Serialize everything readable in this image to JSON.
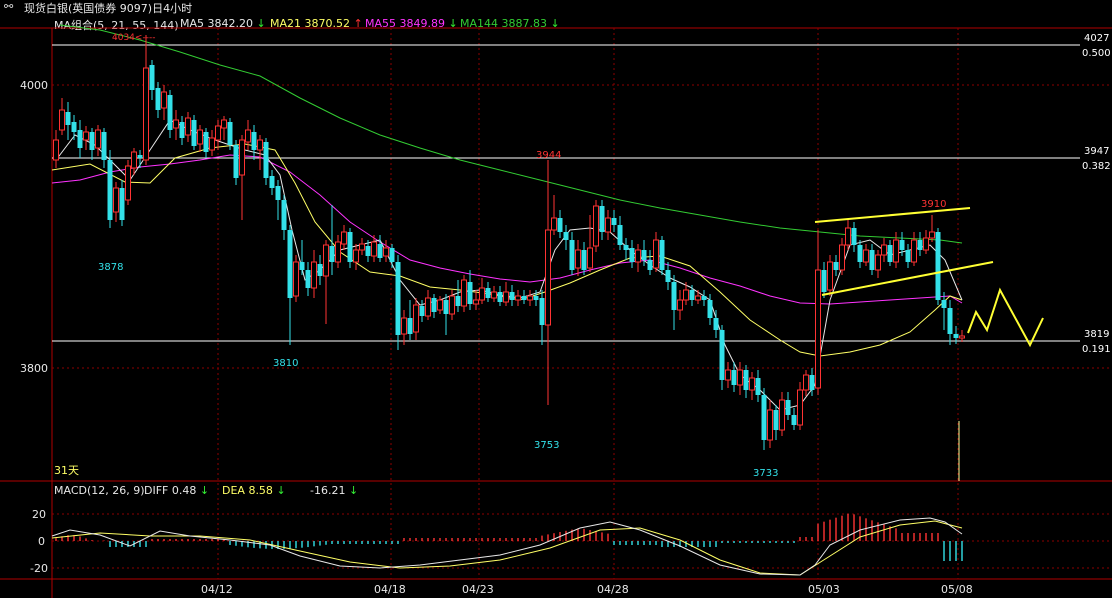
{
  "window": {
    "title_icon": "link-icon",
    "title": "现货白银(英国债券 9097)日4小时"
  },
  "ma_legend": {
    "group": "MA组合(5, 21, 55, 144)",
    "items": [
      {
        "label": "MA5 3842.20",
        "arrow": "↓",
        "color": "#e8e8e8"
      },
      {
        "label": "MA21 3870.52",
        "arrow": "↑",
        "color": "#ffff66"
      },
      {
        "label": "MA55 3849.89",
        "arrow": "↓",
        "color": "#ff33ff"
      },
      {
        "label": "MA144 3887.83",
        "arrow": "↓",
        "color": "#33cc33"
      }
    ]
  },
  "price_axis": {
    "ticks": [
      "4000",
      "3800"
    ]
  },
  "fib_levels": [
    {
      "price": "4027",
      "ratio": "0.500"
    },
    {
      "price": "3947",
      "ratio": "0.382"
    },
    {
      "price": "3819",
      "ratio": "0.191"
    }
  ],
  "annotations": {
    "high_4034": "4034<----",
    "p3878": "3878",
    "p3810": "3810",
    "p3944": "3944",
    "p3753": "3753",
    "p3733": "3733",
    "p3910": "3910",
    "period_label": "31天"
  },
  "macd_legend": {
    "title": "MACD(12, 26, 9)",
    "diff": "DIFF  0.48",
    "diff_arrow": "↓",
    "dea": "DEA  8.58",
    "dea_arrow": "↓",
    "macd": "-16.21",
    "macd_arrow": "↓"
  },
  "macd_axis": {
    "ticks": [
      "20",
      "0",
      "-20"
    ]
  },
  "date_axis": {
    "ticks": [
      "04/12",
      "04/18",
      "04/23",
      "04/28",
      "05/03",
      "05/08"
    ]
  },
  "colors": {
    "up": "#ff3333",
    "down": "#33e0e8",
    "grid": "#8b0000",
    "fib": "#ffffff",
    "trendline": "#ffff33"
  },
  "chart_data": {
    "type": "candlestick",
    "timeframe": "4 hour",
    "ylim": [
      3700,
      4060
    ],
    "macd_ylim": [
      -28,
      32
    ],
    "ma_series": [
      {
        "name": "MA5",
        "value": 3842.2
      },
      {
        "name": "MA21",
        "value": 3870.52
      },
      {
        "name": "MA55",
        "value": 3849.89
      },
      {
        "name": "MA144",
        "value": 3887.83
      }
    ],
    "fib_lines": [
      {
        "price": 4027,
        "ratio": 0.5
      },
      {
        "price": 3947,
        "ratio": 0.382
      },
      {
        "price": 3819,
        "ratio": 0.191
      }
    ],
    "marked_extremes": [
      4034,
      3878,
      3810,
      3944,
      3753,
      3733,
      3910
    ],
    "macd": {
      "diff": 0.48,
      "dea": 8.58,
      "macd": -16.21
    }
  }
}
